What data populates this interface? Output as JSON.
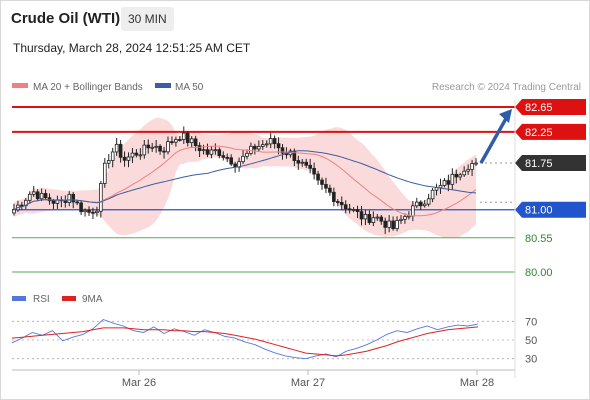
{
  "header": {
    "instrument": "Crude Oil (WTI)",
    "timeframe": "30 MIN",
    "datetime": "Thursday, March 28, 2024 12:51:25 AM CET"
  },
  "legend": {
    "ma20_bb": "MA 20 + Bollinger Bands",
    "ma50": "MA 50",
    "copyright": "Research © 2024 Trading Central"
  },
  "rsi_legend": {
    "rsi": "RSI",
    "ma9": "9MA"
  },
  "colors": {
    "resistance": "#dd1111",
    "support": "#2255cc",
    "minor_support": "#55aa55",
    "last_price": "#333333",
    "bollinger_fill": "#f9d3d3",
    "ma20": "#f08080",
    "ma50": "#3a5fa0",
    "rsi": "#5577dd",
    "rsi_ma": "#dd2222",
    "arrow": "#2e5ea8"
  },
  "chart_data": [
    {
      "type": "candlestick",
      "title": "Crude Oil (WTI)",
      "x_labels": [
        "Mar 26",
        "Mar 27",
        "Mar 28"
      ],
      "ylim": [
        79.8,
        82.85
      ],
      "levels": [
        {
          "value": 82.65,
          "label": "82.65",
          "kind": "resistance"
        },
        {
          "value": 82.25,
          "label": "82.25",
          "kind": "resistance"
        },
        {
          "value": 81.75,
          "label": "81.75",
          "kind": "last"
        },
        {
          "value": 81.0,
          "label": "81.00",
          "kind": "support"
        },
        {
          "value": 80.55,
          "label": "80.55",
          "kind": "minor_support"
        },
        {
          "value": 80.0,
          "label": "80.00",
          "kind": "minor_support"
        }
      ],
      "close_path": [
        81.0,
        81.15,
        81.3,
        81.2,
        81.15,
        81.1,
        81.25,
        81.05,
        80.95,
        81.05,
        81.8,
        82.0,
        81.8,
        81.9,
        81.95,
        82.05,
        81.95,
        82.1,
        82.2,
        82.1,
        82.0,
        81.9,
        81.95,
        81.85,
        81.75,
        81.85,
        82.0,
        82.05,
        82.1,
        81.95,
        81.9,
        81.75,
        81.6,
        81.4,
        81.3,
        81.15,
        81.05,
        80.95,
        80.85,
        80.9,
        80.8,
        80.7,
        80.85,
        81.0,
        81.1,
        81.25,
        81.35,
        81.45,
        81.6,
        81.72,
        81.75
      ],
      "projection": {
        "from": 81.75,
        "to": 82.65
      }
    },
    {
      "type": "line",
      "title": "RSI",
      "series": [
        {
          "name": "RSI",
          "values": [
            47,
            52,
            58,
            55,
            60,
            49,
            53,
            56,
            62,
            72,
            68,
            65,
            60,
            58,
            64,
            57,
            62,
            59,
            55,
            61,
            58,
            54,
            52,
            48,
            45,
            40,
            36,
            33,
            31,
            30,
            33,
            35,
            32,
            38,
            41,
            45,
            50,
            56,
            60,
            58,
            62,
            65,
            61,
            64,
            66,
            65,
            67
          ]
        },
        {
          "name": "9MA",
          "values": [
            52,
            53,
            54,
            55,
            56,
            57,
            58,
            59,
            61,
            63,
            63,
            63,
            62,
            61,
            61,
            61,
            60,
            60,
            59,
            59,
            58,
            57,
            55,
            53,
            51,
            48,
            45,
            42,
            39,
            36,
            35,
            34,
            33,
            34,
            36,
            38,
            41,
            44,
            48,
            51,
            54,
            57,
            59,
            61,
            62,
            63,
            64
          ]
        }
      ],
      "yticks": [
        70,
        50,
        30
      ],
      "ylim": [
        20,
        80
      ]
    }
  ]
}
